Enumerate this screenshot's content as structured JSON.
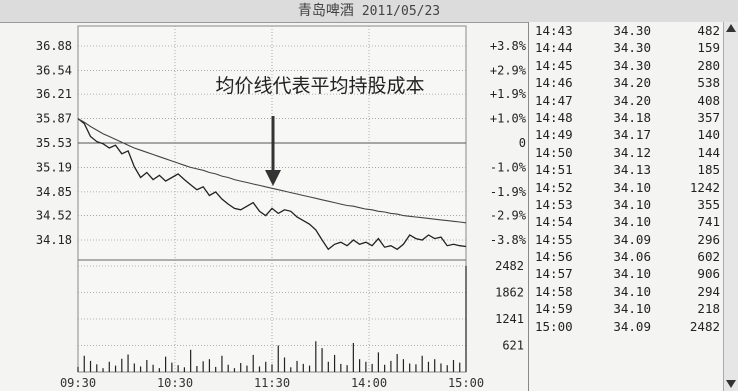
{
  "title": {
    "stock": "青岛啤酒",
    "date": "2011/05/23"
  },
  "annotation": "均价线代表平均持股成本",
  "chart_data": {
    "type": "line",
    "prev_close": 35.53,
    "ylim": [
      34.18,
      36.88
    ],
    "price_labels": [
      "36.88",
      "36.54",
      "36.21",
      "35.87",
      "35.53",
      "35.19",
      "34.85",
      "34.52",
      "34.18"
    ],
    "pct_labels": [
      "+3.8%",
      "+2.9%",
      "+1.9%",
      "+1.0%",
      "0",
      "-1.0%",
      "-1.9%",
      "-2.9%",
      "-3.8%"
    ],
    "volume_labels": [
      "2482",
      "1862",
      "1241",
      "621"
    ],
    "volume_max": 2482,
    "x_labels": [
      "09:30",
      "10:30",
      "11:30",
      "14:00",
      "15:00"
    ],
    "series": [
      {
        "values": [
          35.87,
          35.8,
          35.62,
          35.55,
          35.52,
          35.46,
          35.5,
          35.38,
          35.42,
          35.2,
          35.05,
          35.12,
          35.02,
          35.08,
          35.0,
          35.05,
          35.1,
          35.02,
          34.95,
          34.88,
          34.92,
          34.8,
          34.85,
          34.75,
          34.68,
          34.62,
          34.6,
          34.65,
          34.7,
          34.58,
          34.52,
          34.62,
          34.55,
          34.6,
          34.58,
          34.5,
          34.45,
          34.4,
          34.32,
          34.18,
          34.05,
          34.12,
          34.15,
          34.1,
          34.18,
          34.12,
          34.15,
          34.1,
          34.2,
          34.08,
          34.1,
          34.05,
          34.12,
          34.25,
          34.2,
          34.18,
          34.25,
          34.2,
          34.22,
          34.1,
          34.12,
          34.1,
          34.09
        ]
      },
      {
        "values": [
          35.87,
          35.82,
          35.76,
          35.71,
          35.66,
          35.62,
          35.58,
          35.54,
          35.5,
          35.46,
          35.43,
          35.4,
          35.37,
          35.34,
          35.31,
          35.28,
          35.25,
          35.22,
          35.19,
          35.17,
          35.15,
          35.12,
          35.1,
          35.07,
          35.05,
          35.02,
          35.0,
          34.98,
          34.96,
          34.94,
          34.92,
          34.9,
          34.88,
          34.86,
          34.84,
          34.82,
          34.8,
          34.78,
          34.76,
          34.74,
          34.72,
          34.7,
          34.68,
          34.66,
          34.65,
          34.63,
          34.61,
          34.6,
          34.58,
          34.57,
          34.55,
          34.54,
          34.52,
          34.51,
          34.5,
          34.49,
          34.48,
          34.47,
          34.46,
          34.45,
          34.44,
          34.43,
          34.42
        ]
      }
    ],
    "volumes": [
      120,
      380,
      260,
      180,
      90,
      240,
      150,
      310,
      410,
      200,
      130,
      280,
      170,
      90,
      360,
      220,
      160,
      110,
      520,
      140,
      250,
      300,
      120,
      380,
      170,
      90,
      210,
      150,
      400,
      130,
      240,
      180,
      620,
      340,
      110,
      260,
      190,
      150,
      720,
      560,
      240,
      400,
      190,
      160,
      680,
      300,
      240,
      190,
      460,
      170,
      260,
      420,
      300,
      200,
      180,
      380,
      240,
      300,
      200,
      160,
      280,
      220,
      2482
    ]
  },
  "ticks": [
    {
      "time": "14:43",
      "price": "34.30",
      "vol": "482"
    },
    {
      "time": "14:44",
      "price": "34.30",
      "vol": "159"
    },
    {
      "time": "14:45",
      "price": "34.30",
      "vol": "280"
    },
    {
      "time": "14:46",
      "price": "34.20",
      "vol": "538"
    },
    {
      "time": "14:47",
      "price": "34.20",
      "vol": "408"
    },
    {
      "time": "14:48",
      "price": "34.18",
      "vol": "357"
    },
    {
      "time": "14:49",
      "price": "34.17",
      "vol": "140"
    },
    {
      "time": "14:50",
      "price": "34.12",
      "vol": "144"
    },
    {
      "time": "14:51",
      "price": "34.13",
      "vol": "185"
    },
    {
      "time": "14:52",
      "price": "34.10",
      "vol": "1242"
    },
    {
      "time": "14:53",
      "price": "34.10",
      "vol": "355"
    },
    {
      "time": "14:54",
      "price": "34.10",
      "vol": "741"
    },
    {
      "time": "14:55",
      "price": "34.09",
      "vol": "296"
    },
    {
      "time": "14:56",
      "price": "34.06",
      "vol": "602"
    },
    {
      "time": "14:57",
      "price": "34.10",
      "vol": "906"
    },
    {
      "time": "14:58",
      "price": "34.10",
      "vol": "294"
    },
    {
      "time": "14:59",
      "price": "34.10",
      "vol": "218"
    },
    {
      "time": "15:00",
      "price": "34.09",
      "vol": "2482"
    }
  ]
}
